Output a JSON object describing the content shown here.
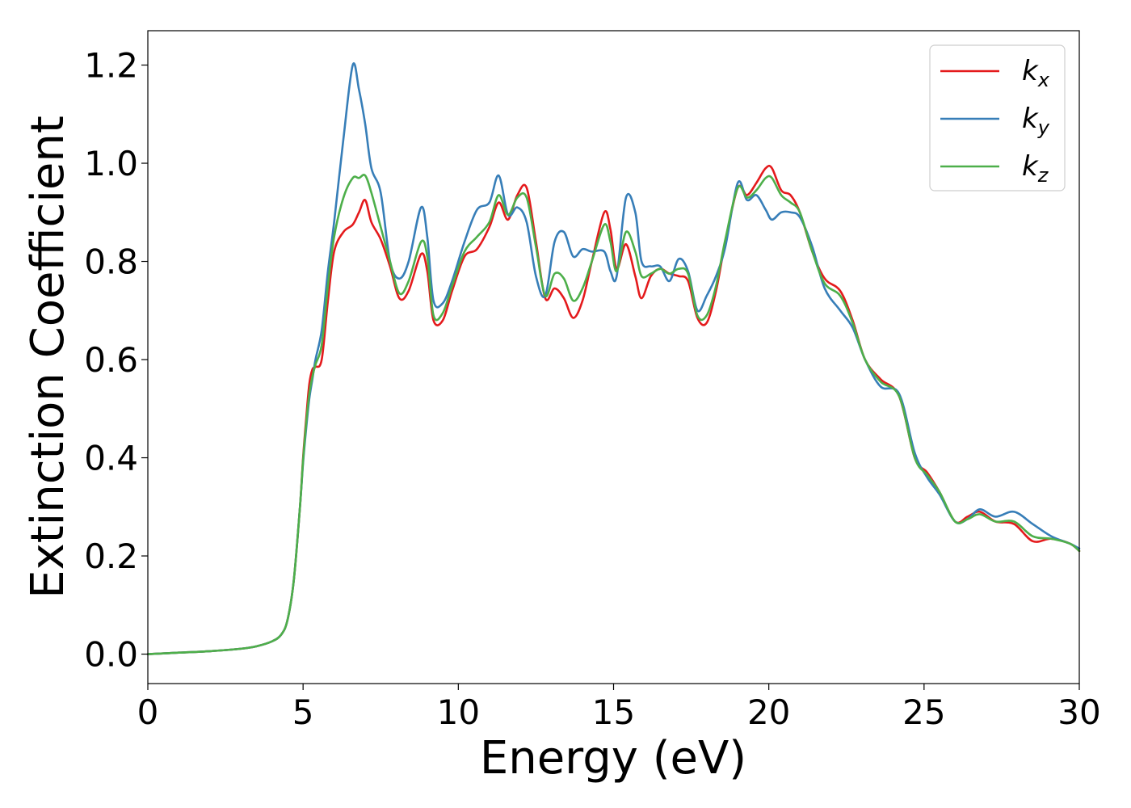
{
  "chart_data": {
    "type": "line",
    "xlabel": "Energy (eV)",
    "ylabel": "Extinction Coefficient",
    "xlim": [
      0,
      30
    ],
    "ylim": [
      -0.06,
      1.27
    ],
    "xticks": [
      0,
      5,
      10,
      15,
      20,
      25,
      30
    ],
    "xtick_labels": [
      "0",
      "5",
      "10",
      "15",
      "20",
      "25",
      "30"
    ],
    "yticks": [
      0.0,
      0.2,
      0.4,
      0.6,
      0.8,
      1.0,
      1.2
    ],
    "ytick_labels": [
      "0.0",
      "0.2",
      "0.4",
      "0.6",
      "0.8",
      "1.0",
      "1.2"
    ],
    "grid": false,
    "legend_position": "top-right",
    "series": [
      {
        "name": "k_x",
        "label_main": "k",
        "label_sub": "x",
        "color": "#e41a1c",
        "x": [
          0,
          1,
          2,
          3,
          3.5,
          4,
          4.3,
          4.5,
          4.7,
          4.9,
          5.0,
          5.1,
          5.2,
          5.3,
          5.4,
          5.6,
          5.8,
          6.0,
          6.3,
          6.6,
          6.8,
          7.0,
          7.2,
          7.5,
          7.8,
          8.1,
          8.4,
          8.8,
          9.0,
          9.2,
          9.5,
          9.8,
          10.2,
          10.6,
          11.0,
          11.3,
          11.6,
          11.9,
          12.2,
          12.5,
          12.8,
          13.1,
          13.4,
          13.7,
          14.0,
          14.3,
          14.7,
          14.9,
          15.1,
          15.4,
          15.7,
          15.9,
          16.2,
          16.5,
          16.8,
          17.1,
          17.4,
          17.7,
          18.0,
          18.3,
          18.6,
          19.0,
          19.3,
          19.6,
          19.9,
          20.1,
          20.4,
          20.7,
          21.0,
          21.4,
          21.8,
          22.3,
          22.7,
          23.1,
          23.6,
          24.2,
          24.7,
          25.1,
          25.5,
          26.0,
          26.4,
          26.8,
          27.3,
          27.9,
          28.5,
          29.1,
          29.7,
          30.0
        ],
        "values": [
          0.0,
          0.003,
          0.006,
          0.011,
          0.016,
          0.026,
          0.04,
          0.07,
          0.15,
          0.3,
          0.4,
          0.48,
          0.55,
          0.58,
          0.585,
          0.6,
          0.72,
          0.82,
          0.86,
          0.875,
          0.9,
          0.925,
          0.88,
          0.845,
          0.79,
          0.725,
          0.74,
          0.815,
          0.78,
          0.68,
          0.68,
          0.74,
          0.81,
          0.825,
          0.87,
          0.92,
          0.885,
          0.935,
          0.95,
          0.84,
          0.725,
          0.745,
          0.725,
          0.685,
          0.72,
          0.8,
          0.9,
          0.865,
          0.785,
          0.835,
          0.77,
          0.725,
          0.77,
          0.785,
          0.775,
          0.77,
          0.76,
          0.685,
          0.675,
          0.74,
          0.84,
          0.95,
          0.935,
          0.96,
          0.99,
          0.99,
          0.945,
          0.935,
          0.9,
          0.82,
          0.765,
          0.74,
          0.68,
          0.6,
          0.56,
          0.525,
          0.4,
          0.37,
          0.33,
          0.27,
          0.28,
          0.29,
          0.27,
          0.265,
          0.23,
          0.235,
          0.225,
          0.21
        ]
      },
      {
        "name": "k_y",
        "label_main": "k",
        "label_sub": "y",
        "color": "#377eb8",
        "x": [
          0,
          1,
          2,
          3,
          3.5,
          4,
          4.3,
          4.5,
          4.7,
          4.9,
          5.0,
          5.1,
          5.2,
          5.3,
          5.4,
          5.6,
          5.8,
          6.0,
          6.3,
          6.6,
          6.8,
          7.0,
          7.2,
          7.5,
          7.8,
          8.1,
          8.4,
          8.8,
          9.0,
          9.2,
          9.5,
          9.8,
          10.2,
          10.6,
          11.0,
          11.3,
          11.6,
          11.9,
          12.2,
          12.5,
          12.8,
          13.1,
          13.4,
          13.7,
          14.0,
          14.3,
          14.7,
          14.9,
          15.1,
          15.4,
          15.7,
          15.9,
          16.2,
          16.5,
          16.8,
          17.1,
          17.4,
          17.7,
          18.0,
          18.3,
          18.6,
          19.0,
          19.3,
          19.6,
          19.9,
          20.1,
          20.4,
          20.7,
          21.0,
          21.4,
          21.8,
          22.3,
          22.7,
          23.1,
          23.6,
          24.2,
          24.7,
          25.1,
          25.5,
          26.0,
          26.4,
          26.8,
          27.3,
          27.9,
          28.5,
          29.1,
          29.7,
          30.0
        ],
        "values": [
          0.0,
          0.003,
          0.006,
          0.011,
          0.016,
          0.026,
          0.04,
          0.07,
          0.15,
          0.3,
          0.39,
          0.46,
          0.52,
          0.56,
          0.6,
          0.66,
          0.78,
          0.88,
          1.05,
          1.2,
          1.15,
          1.08,
          0.99,
          0.94,
          0.8,
          0.765,
          0.8,
          0.91,
          0.85,
          0.72,
          0.715,
          0.76,
          0.84,
          0.905,
          0.92,
          0.975,
          0.895,
          0.91,
          0.88,
          0.77,
          0.73,
          0.84,
          0.86,
          0.81,
          0.825,
          0.82,
          0.82,
          0.78,
          0.77,
          0.93,
          0.9,
          0.8,
          0.79,
          0.79,
          0.76,
          0.805,
          0.78,
          0.7,
          0.73,
          0.77,
          0.83,
          0.96,
          0.925,
          0.935,
          0.905,
          0.885,
          0.9,
          0.9,
          0.89,
          0.83,
          0.745,
          0.7,
          0.665,
          0.6,
          0.545,
          0.53,
          0.41,
          0.36,
          0.325,
          0.27,
          0.275,
          0.295,
          0.28,
          0.29,
          0.265,
          0.24,
          0.225,
          0.215
        ]
      },
      {
        "name": "k_z",
        "label_main": "k",
        "label_sub": "z",
        "color": "#4daf4a",
        "x": [
          0,
          1,
          2,
          3,
          3.5,
          4,
          4.3,
          4.5,
          4.7,
          4.9,
          5.0,
          5.1,
          5.2,
          5.3,
          5.4,
          5.6,
          5.8,
          6.0,
          6.3,
          6.6,
          6.8,
          7.0,
          7.2,
          7.5,
          7.8,
          8.1,
          8.4,
          8.8,
          9.0,
          9.2,
          9.5,
          9.8,
          10.2,
          10.6,
          11.0,
          11.3,
          11.6,
          11.9,
          12.2,
          12.5,
          12.8,
          13.1,
          13.4,
          13.7,
          14.0,
          14.3,
          14.7,
          14.9,
          15.1,
          15.4,
          15.7,
          15.9,
          16.2,
          16.5,
          16.8,
          17.1,
          17.4,
          17.7,
          18.0,
          18.3,
          18.6,
          19.0,
          19.3,
          19.6,
          19.9,
          20.1,
          20.4,
          20.7,
          21.0,
          21.4,
          21.8,
          22.3,
          22.7,
          23.1,
          23.6,
          24.2,
          24.7,
          25.1,
          25.5,
          26.0,
          26.4,
          26.8,
          27.3,
          27.9,
          28.5,
          29.1,
          29.7,
          30.0
        ],
        "values": [
          0.0,
          0.003,
          0.006,
          0.011,
          0.016,
          0.026,
          0.04,
          0.07,
          0.15,
          0.3,
          0.395,
          0.47,
          0.53,
          0.565,
          0.59,
          0.63,
          0.75,
          0.85,
          0.93,
          0.97,
          0.97,
          0.975,
          0.94,
          0.87,
          0.8,
          0.735,
          0.76,
          0.84,
          0.81,
          0.69,
          0.695,
          0.75,
          0.82,
          0.85,
          0.88,
          0.935,
          0.895,
          0.93,
          0.93,
          0.83,
          0.73,
          0.775,
          0.765,
          0.72,
          0.745,
          0.8,
          0.875,
          0.84,
          0.78,
          0.86,
          0.82,
          0.77,
          0.775,
          0.785,
          0.775,
          0.785,
          0.775,
          0.69,
          0.69,
          0.75,
          0.845,
          0.95,
          0.93,
          0.945,
          0.97,
          0.97,
          0.935,
          0.92,
          0.9,
          0.82,
          0.755,
          0.73,
          0.675,
          0.6,
          0.555,
          0.525,
          0.4,
          0.365,
          0.33,
          0.27,
          0.275,
          0.285,
          0.27,
          0.27,
          0.24,
          0.235,
          0.225,
          0.21
        ]
      }
    ]
  }
}
